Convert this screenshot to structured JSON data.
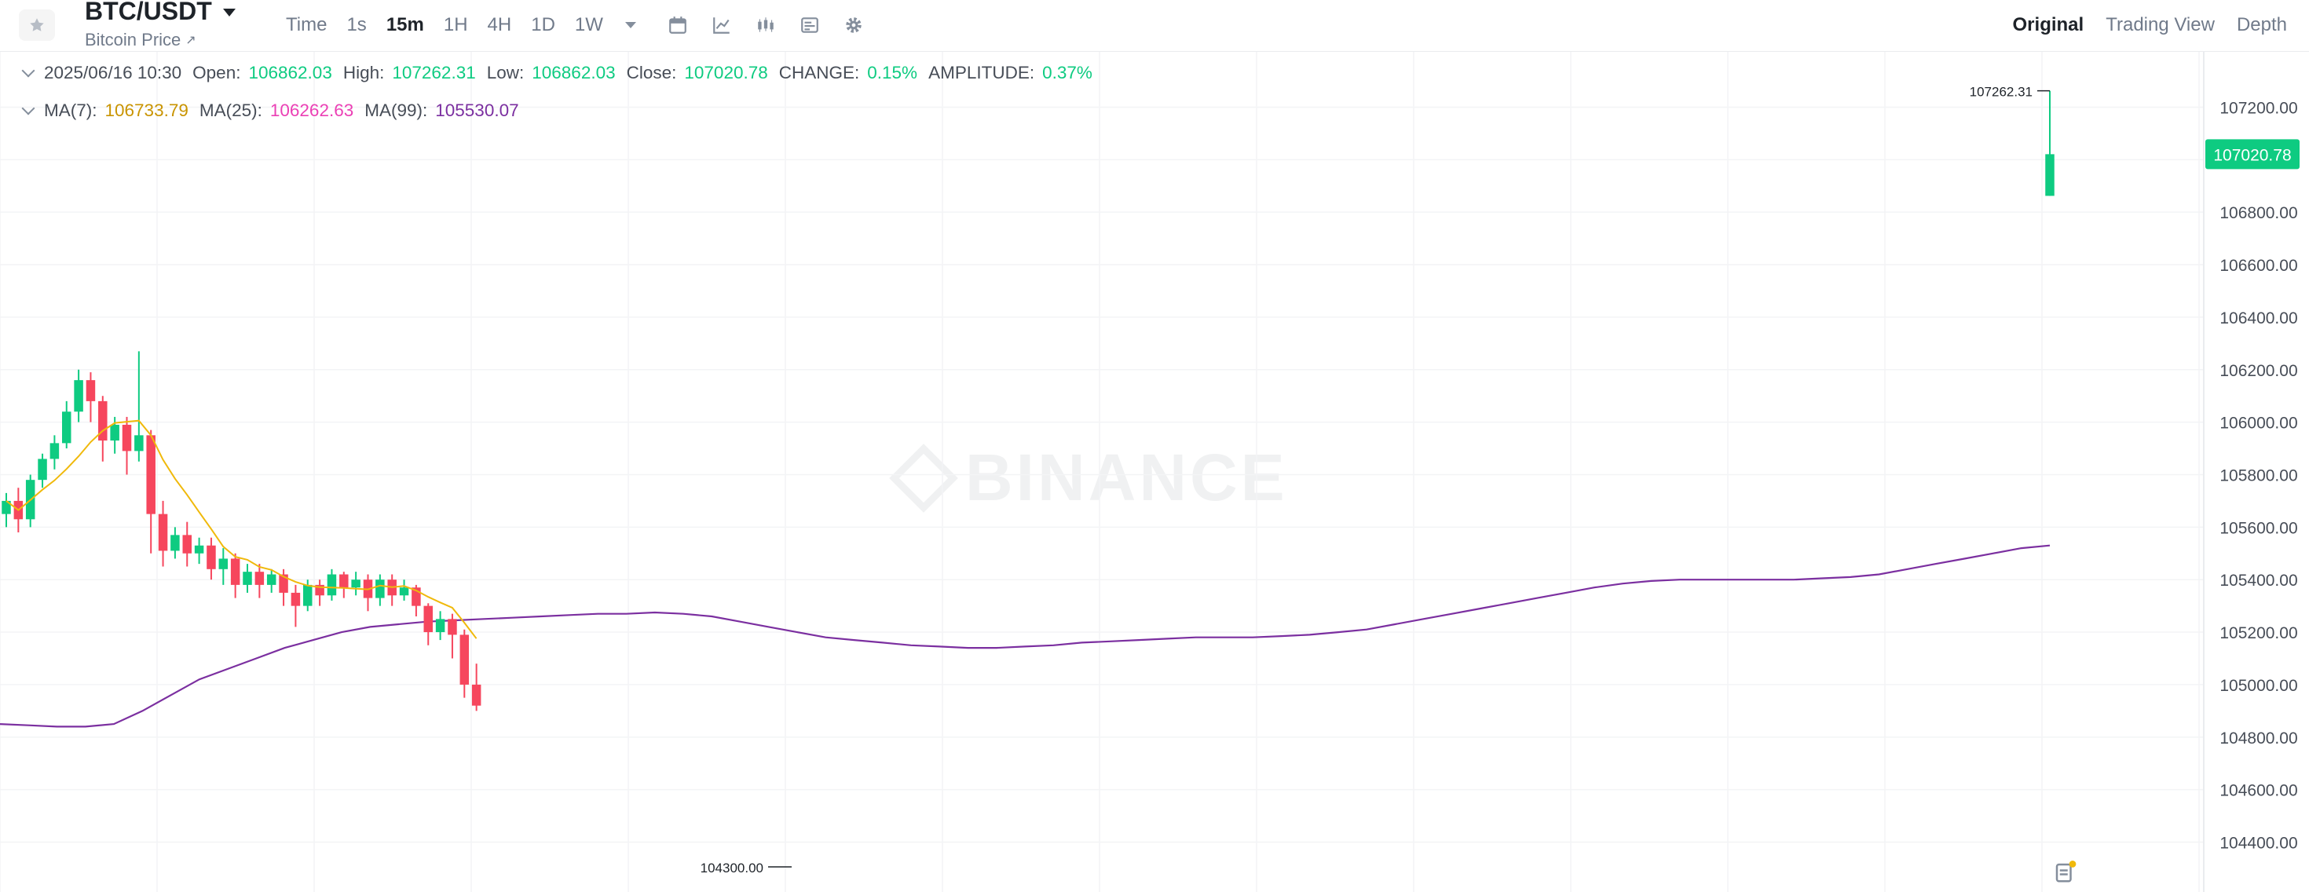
{
  "header": {
    "symbol": "BTC/USDT",
    "subtitle": "Bitcoin Price",
    "favorite_icon": "star-icon",
    "intervals": [
      {
        "label": "Time",
        "active": false
      },
      {
        "label": "1s",
        "active": false
      },
      {
        "label": "15m",
        "active": true
      },
      {
        "label": "1H",
        "active": false
      },
      {
        "label": "4H",
        "active": false
      },
      {
        "label": "1D",
        "active": false
      },
      {
        "label": "1W",
        "active": false
      }
    ],
    "tools": [
      "calendar-icon",
      "indicator-icon",
      "candle-type-icon",
      "layout-icon",
      "settings-gear-icon"
    ],
    "views": [
      {
        "label": "Original",
        "active": true
      },
      {
        "label": "Trading View",
        "active": false
      },
      {
        "label": "Depth",
        "active": false
      }
    ]
  },
  "ohlc": {
    "datetime": "2025/06/16 10:30",
    "open_label": "Open:",
    "open": "106862.03",
    "high_label": "High:",
    "high": "107262.31",
    "low_label": "Low:",
    "low": "106862.03",
    "close_label": "Close:",
    "close": "107020.78",
    "change_label": "CHANGE:",
    "change": "0.15%",
    "amplitude_label": "AMPLITUDE:",
    "amplitude": "0.37%"
  },
  "ma": {
    "ma7_label": "MA(7):",
    "ma7": "106733.79",
    "ma25_label": "MA(25):",
    "ma25": "106262.63",
    "ma99_label": "MA(99):",
    "ma99": "105530.07"
  },
  "watermark": "BINANCE",
  "colors": {
    "up": "#0ecb81",
    "down": "#f6465d",
    "ma7": "#f0b90b",
    "ma25": "#eb40b5",
    "ma99": "#7b2fa0",
    "grid": "#f3f4f6",
    "axis_text": "#474d57",
    "watermark": "#f0f1f2"
  },
  "chart_data": {
    "type": "candlestick",
    "symbol": "BTC/USDT",
    "interval": "15m",
    "ylim": [
      104300,
      107500
    ],
    "y_ticks": [
      107200,
      107000,
      106800,
      106600,
      106400,
      106200,
      106000,
      105800,
      105600,
      105400,
      105200,
      105000,
      104800,
      104600,
      104400
    ],
    "y_tick_labels": [
      "107200.00",
      "107000.00",
      "106800.00",
      "106600.00",
      "106400.00",
      "106200.00",
      "106000.00",
      "105800.00",
      "105600.00",
      "105400.00",
      "105200.00",
      "105000.00",
      "104800.00",
      "104600.00",
      "104400.00"
    ],
    "last_price": 107020.78,
    "last_price_label": "107020.78",
    "max_marker": {
      "value": 107262.31,
      "label": "107262.31"
    },
    "min_marker": {
      "value": 104300.0,
      "label": "104300.00"
    },
    "grid": true,
    "indicators": [
      "MA(7)",
      "MA(25)",
      "MA(99)"
    ],
    "ma7_at_last": 106733.79,
    "ma25_at_last": 106262.63,
    "ma99_at_last": 105530.07,
    "ma99_series": [
      104850,
      104845,
      104840,
      104840,
      104850,
      104900,
      104960,
      105020,
      105060,
      105100,
      105140,
      105170,
      105200,
      105220,
      105230,
      105240,
      105245,
      105250,
      105255,
      105260,
      105265,
      105270,
      105270,
      105275,
      105270,
      105260,
      105240,
      105220,
      105200,
      105180,
      105170,
      105160,
      105150,
      105145,
      105140,
      105140,
      105145,
      105150,
      105160,
      105165,
      105170,
      105175,
      105180,
      105180,
      105180,
      105185,
      105190,
      105200,
      105210,
      105230,
      105250,
      105270,
      105290,
      105310,
      105330,
      105350,
      105370,
      105385,
      105395,
      105400,
      105400,
      105400,
      105400,
      105400,
      105405,
      105410,
      105420,
      105440,
      105460,
      105480,
      105500,
      105520,
      105530
    ],
    "candles": [
      [
        105650,
        105700,
        105600,
        105730
      ],
      [
        105700,
        105630,
        105580,
        105750
      ],
      [
        105630,
        105780,
        105600,
        105800
      ],
      [
        105780,
        105860,
        105750,
        105880
      ],
      [
        105860,
        105920,
        105820,
        105950
      ],
      [
        105920,
        106040,
        105900,
        106080
      ],
      [
        106040,
        106160,
        106000,
        106200
      ],
      [
        106160,
        106080,
        106000,
        106190
      ],
      [
        106080,
        105930,
        105850,
        106100
      ],
      [
        105930,
        105990,
        105880,
        106020
      ],
      [
        105990,
        105890,
        105800,
        106020
      ],
      [
        105890,
        105950,
        105850,
        106270
      ],
      [
        105950,
        105650,
        105500,
        105970
      ],
      [
        105650,
        105510,
        105450,
        105700
      ],
      [
        105510,
        105570,
        105480,
        105600
      ],
      [
        105570,
        105500,
        105450,
        105620
      ],
      [
        105500,
        105530,
        105460,
        105560
      ],
      [
        105530,
        105440,
        105400,
        105560
      ],
      [
        105440,
        105480,
        105380,
        105520
      ],
      [
        105480,
        105380,
        105330,
        105500
      ],
      [
        105380,
        105430,
        105350,
        105460
      ],
      [
        105430,
        105380,
        105330,
        105460
      ],
      [
        105380,
        105420,
        105350,
        105440
      ],
      [
        105420,
        105350,
        105300,
        105440
      ],
      [
        105350,
        105300,
        105220,
        105380
      ],
      [
        105300,
        105380,
        105280,
        105400
      ],
      [
        105380,
        105340,
        105300,
        105400
      ],
      [
        105340,
        105420,
        105320,
        105440
      ],
      [
        105420,
        105370,
        105330,
        105430
      ],
      [
        105370,
        105400,
        105340,
        105430
      ],
      [
        105400,
        105330,
        105280,
        105420
      ],
      [
        105330,
        105400,
        105300,
        105420
      ],
      [
        105400,
        105340,
        105300,
        105420
      ],
      [
        105340,
        105370,
        105320,
        105400
      ],
      [
        105370,
        105300,
        105260,
        105380
      ],
      [
        105300,
        105200,
        105150,
        105310
      ],
      [
        105200,
        105250,
        105170,
        105280
      ],
      [
        105250,
        105190,
        105100,
        105270
      ],
      [
        105190,
        105000,
        104950,
        105210
      ],
      [
        105000,
        104920,
        104900,
        105080
      ]
    ]
  }
}
